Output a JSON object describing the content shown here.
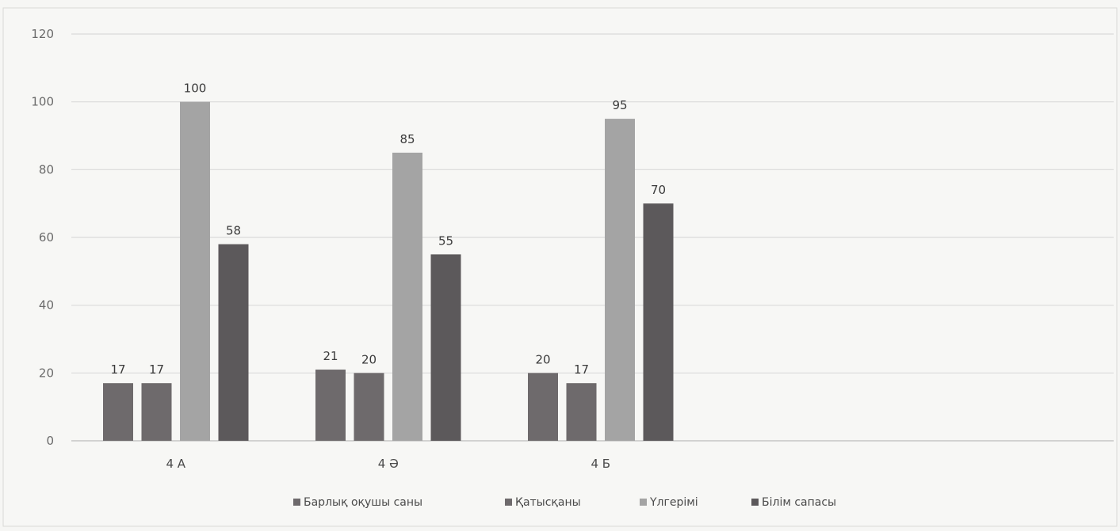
{
  "chart_data": {
    "type": "bar",
    "categories": [
      "4 A",
      "4 Ә",
      "4 Б"
    ],
    "series": [
      {
        "name": "Барлық оқушы саны",
        "values": [
          17,
          21,
          20
        ],
        "labels": [
          "17",
          "21",
          "20"
        ],
        "color": "#6e6a6c"
      },
      {
        "name": "Қатысқаны",
        "values": [
          17,
          20,
          17
        ],
        "labels": [
          "17",
          "20",
          "17"
        ],
        "color": "#6e6a6c"
      },
      {
        "name": "Үлгерімі",
        "values": [
          100,
          85,
          95
        ],
        "labels": [
          "100",
          "85",
          "95"
        ],
        "color": "#a4a4a4"
      },
      {
        "name": "Білім сапасы",
        "values": [
          58,
          55,
          70
        ],
        "labels": [
          "58",
          "55",
          "70"
        ],
        "color": "#5c595b"
      }
    ],
    "yticks": [
      0,
      20,
      40,
      60,
      80,
      100,
      120
    ],
    "ylim": [
      0,
      120
    ],
    "grid": true,
    "legend": "bottom",
    "title": "",
    "xlabel": "",
    "ylabel": ""
  }
}
